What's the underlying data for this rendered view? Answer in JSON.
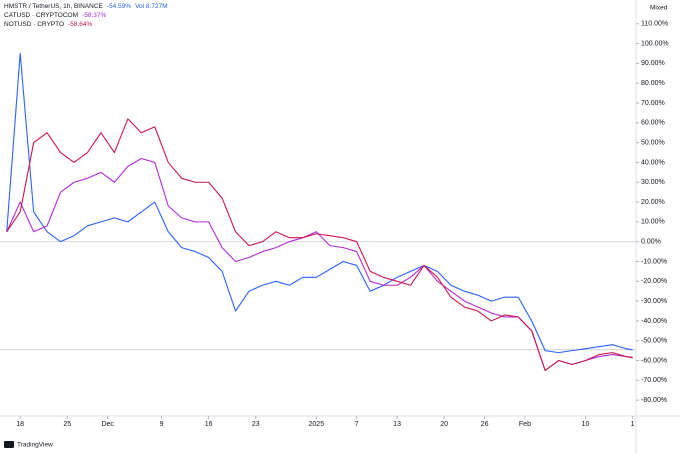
{
  "chart_data": {
    "type": "line",
    "scale_mode": "Mixed",
    "watermark": "TradingView",
    "x": [
      -2,
      0,
      2,
      4,
      6,
      8,
      10,
      12,
      14,
      16,
      18,
      20,
      22,
      24,
      26,
      28,
      30,
      32,
      34,
      36,
      38,
      40,
      42,
      44,
      46,
      48,
      50,
      52,
      54,
      56,
      58,
      60,
      62,
      64,
      66,
      68,
      70,
      72,
      74,
      76,
      78,
      80,
      82,
      84,
      86,
      88,
      90,
      91
    ],
    "xlim": [
      -3,
      91.5
    ],
    "xticks": [
      {
        "value": 0,
        "label": "18"
      },
      {
        "value": 7,
        "label": "25"
      },
      {
        "value": 13,
        "label": "Dec"
      },
      {
        "value": 21,
        "label": "9"
      },
      {
        "value": 28,
        "label": "16"
      },
      {
        "value": 35,
        "label": "23"
      },
      {
        "value": 44,
        "label": "2025"
      },
      {
        "value": 50,
        "label": "7"
      },
      {
        "value": 56,
        "label": "13"
      },
      {
        "value": 63,
        "label": "20"
      },
      {
        "value": 69,
        "label": "26"
      },
      {
        "value": 75,
        "label": "Feb"
      },
      {
        "value": 84,
        "label": "10"
      },
      {
        "value": 91,
        "label": "1"
      }
    ],
    "ylim": [
      -88,
      122
    ],
    "yticks": [
      {
        "value": 110,
        "label": "110.00%"
      },
      {
        "value": 100,
        "label": "100.00%"
      },
      {
        "value": 90,
        "label": "90.00%"
      },
      {
        "value": 80,
        "label": "80.00%"
      },
      {
        "value": 70,
        "label": "70.00%"
      },
      {
        "value": 60,
        "label": "60.00%"
      },
      {
        "value": 50,
        "label": "50.00%"
      },
      {
        "value": 40,
        "label": "40.00%"
      },
      {
        "value": 30,
        "label": "30.00%"
      },
      {
        "value": 20,
        "label": "20.00%"
      },
      {
        "value": 10,
        "label": "10.00%"
      },
      {
        "value": 0,
        "label": "0.00%"
      },
      {
        "value": -10,
        "label": "-10.00%"
      },
      {
        "value": -20,
        "label": "-20.00%"
      },
      {
        "value": -30,
        "label": "-30.00%"
      },
      {
        "value": -40,
        "label": "-40.00%"
      },
      {
        "value": -50,
        "label": "-50.00%"
      },
      {
        "value": -60,
        "label": "-60.00%"
      },
      {
        "value": -70,
        "label": "-70.00%"
      },
      {
        "value": -80,
        "label": "-80.00%"
      }
    ],
    "series": [
      {
        "name": "HMSTR / TetherUS, 1h, BINANCE",
        "color": "#2962ff",
        "change": "-54.59%",
        "volume": "Vol 8.727M",
        "values": [
          5,
          95,
          15,
          5,
          0,
          3,
          8,
          10,
          12,
          10,
          15,
          20,
          5,
          -3,
          -5,
          -8,
          -15,
          -35,
          -25,
          -22,
          -20,
          -22,
          -18,
          -18,
          -14,
          -10,
          -12,
          -25,
          -22,
          -18,
          -15,
          -12,
          -15,
          -22,
          -25,
          -27,
          -30,
          -28,
          -28,
          -40,
          -55,
          -56,
          -55,
          -54,
          -53,
          -52,
          -54,
          -54.59
        ]
      },
      {
        "name": "CATUSD · CRYPTOCOM",
        "color": "#b42ad8",
        "change": "-58.37%",
        "values": [
          5,
          20,
          5,
          8,
          25,
          30,
          32,
          35,
          30,
          38,
          42,
          40,
          18,
          12,
          10,
          10,
          -3,
          -10,
          -8,
          -5,
          -3,
          0,
          2,
          5,
          -2,
          -3,
          -5,
          -20,
          -22,
          -22,
          -18,
          -12,
          -20,
          -25,
          -30,
          -33,
          -36,
          -38,
          -38,
          -45,
          -65,
          -60,
          -62,
          -60,
          -58,
          -57,
          -58,
          -58.37
        ]
      },
      {
        "name": "NOTUSD · CRYPTO",
        "color": "#c8174f",
        "change": "-58.64%",
        "values": [
          5,
          15,
          50,
          55,
          45,
          40,
          45,
          55,
          45,
          62,
          55,
          58,
          40,
          32,
          30,
          30,
          22,
          5,
          -2,
          0,
          5,
          2,
          2,
          4,
          3,
          2,
          0,
          -15,
          -18,
          -20,
          -22,
          -12,
          -18,
          -28,
          -33,
          -35,
          -40,
          -37,
          -38,
          -45,
          -65,
          -60,
          -62,
          -60,
          -57,
          -56,
          -58,
          -58.64
        ]
      }
    ]
  }
}
